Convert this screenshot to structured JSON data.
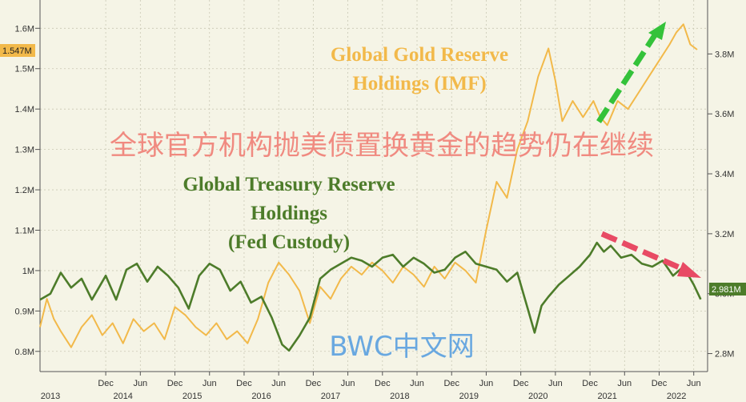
{
  "chart_data": {
    "type": "line",
    "title": "全球官方机构抛美债置换黄金的趋势仍在继续",
    "watermark": "BWC中文网",
    "left_axis": {
      "ticks": [
        "0.8M",
        "0.9M",
        "1M",
        "1.1M",
        "1.2M",
        "1.3M",
        "1.4M",
        "1.5M",
        "1.6M"
      ],
      "tick_values": [
        0.8,
        0.9,
        1.0,
        1.1,
        1.2,
        1.3,
        1.4,
        1.5,
        1.6
      ],
      "ylim": [
        0.75,
        1.67
      ],
      "current_label": "1.547M"
    },
    "right_axis": {
      "ticks": [
        "2.8M",
        "3.0M",
        "3.2M",
        "3.4M",
        "3.6M",
        "3.8M"
      ],
      "tick_values": [
        2.8,
        3.0,
        3.2,
        3.4,
        3.6,
        3.8
      ],
      "ylim": [
        2.74,
        3.98
      ],
      "current_label": "2.981M"
    },
    "x_axis": {
      "xlim": [
        2013.0,
        2022.65
      ],
      "month_ticks": [
        {
          "label": "Dec",
          "x": 2013.95
        },
        {
          "label": "Jun",
          "x": 2014.45
        },
        {
          "label": "Dec",
          "x": 2014.95
        },
        {
          "label": "Jun",
          "x": 2015.45
        },
        {
          "label": "Dec",
          "x": 2015.95
        },
        {
          "label": "Jun",
          "x": 2016.45
        },
        {
          "label": "Dec",
          "x": 2016.95
        },
        {
          "label": "Jun",
          "x": 2017.45
        },
        {
          "label": "Dec",
          "x": 2017.95
        },
        {
          "label": "Jun",
          "x": 2018.45
        },
        {
          "label": "Dec",
          "x": 2018.95
        },
        {
          "label": "Jun",
          "x": 2019.45
        },
        {
          "label": "Dec",
          "x": 2019.95
        },
        {
          "label": "Jun",
          "x": 2020.45
        },
        {
          "label": "Dec",
          "x": 2020.95
        },
        {
          "label": "Jun",
          "x": 2021.45
        },
        {
          "label": "Dec",
          "x": 2021.95
        },
        {
          "label": "Jun",
          "x": 2022.45
        }
      ],
      "year_labels": [
        {
          "label": "2013",
          "x": 2013.15
        },
        {
          "label": "2014",
          "x": 2014.2
        },
        {
          "label": "2015",
          "x": 2015.2
        },
        {
          "label": "2016",
          "x": 2016.2
        },
        {
          "label": "2017",
          "x": 2017.2
        },
        {
          "label": "2018",
          "x": 2018.2
        },
        {
          "label": "2019",
          "x": 2019.2
        },
        {
          "label": "2020",
          "x": 2020.2
        },
        {
          "label": "2021",
          "x": 2021.2
        },
        {
          "label": "2022",
          "x": 2022.2
        }
      ]
    },
    "series": [
      {
        "name": "Global Gold Reserve Holdings (IMF)",
        "axis": "left",
        "color": "#f2b94a",
        "x": [
          2013.0,
          2013.1,
          2013.2,
          2013.3,
          2013.45,
          2013.6,
          2013.75,
          2013.9,
          2014.05,
          2014.2,
          2014.35,
          2014.5,
          2014.65,
          2014.8,
          2014.95,
          2015.1,
          2015.25,
          2015.4,
          2015.55,
          2015.7,
          2015.85,
          2016.0,
          2016.15,
          2016.3,
          2016.45,
          2016.6,
          2016.75,
          2016.9,
          2017.05,
          2017.2,
          2017.35,
          2017.5,
          2017.65,
          2017.8,
          2017.95,
          2018.1,
          2018.25,
          2018.4,
          2018.55,
          2018.7,
          2018.85,
          2019.0,
          2019.15,
          2019.3,
          2019.45,
          2019.6,
          2019.75,
          2019.9,
          2020.05,
          2020.2,
          2020.35,
          2020.45,
          2020.55,
          2020.7,
          2020.85,
          2021.0,
          2021.1,
          2021.2,
          2021.35,
          2021.5,
          2021.65,
          2021.8,
          2021.95,
          2022.1,
          2022.2,
          2022.3,
          2022.4,
          2022.5
        ],
        "values": [
          0.86,
          0.93,
          0.88,
          0.85,
          0.81,
          0.86,
          0.89,
          0.84,
          0.87,
          0.82,
          0.88,
          0.85,
          0.87,
          0.83,
          0.91,
          0.89,
          0.86,
          0.84,
          0.87,
          0.83,
          0.85,
          0.82,
          0.88,
          0.97,
          1.02,
          0.99,
          0.95,
          0.87,
          0.96,
          0.93,
          0.98,
          1.01,
          0.99,
          1.02,
          1.0,
          0.97,
          1.01,
          0.99,
          0.96,
          1.01,
          0.98,
          1.02,
          1.0,
          0.97,
          1.1,
          1.22,
          1.18,
          1.3,
          1.37,
          1.48,
          1.55,
          1.47,
          1.37,
          1.42,
          1.38,
          1.42,
          1.38,
          1.36,
          1.42,
          1.4,
          1.44,
          1.48,
          1.52,
          1.56,
          1.59,
          1.61,
          1.56,
          1.547
        ]
      },
      {
        "name": "Global Treasury Reserve Holdings (Fed Custody)",
        "axis": "right",
        "color": "#4d7c2a",
        "x": [
          2013.0,
          2013.15,
          2013.3,
          2013.45,
          2013.6,
          2013.75,
          2013.85,
          2013.95,
          2014.1,
          2014.25,
          2014.4,
          2014.55,
          2014.7,
          2014.85,
          2015.0,
          2015.15,
          2015.3,
          2015.45,
          2015.6,
          2015.75,
          2015.9,
          2016.05,
          2016.2,
          2016.35,
          2016.5,
          2016.6,
          2016.75,
          2016.9,
          2017.05,
          2017.2,
          2017.35,
          2017.5,
          2017.65,
          2017.8,
          2017.95,
          2018.1,
          2018.25,
          2018.4,
          2018.55,
          2018.7,
          2018.85,
          2019.0,
          2019.15,
          2019.3,
          2019.45,
          2019.6,
          2019.75,
          2019.9,
          2020.05,
          2020.15,
          2020.25,
          2020.35,
          2020.5,
          2020.65,
          2020.8,
          2020.95,
          2021.05,
          2021.15,
          2021.25,
          2021.4,
          2021.55,
          2021.7,
          2021.85,
          2022.0,
          2022.15,
          2022.3,
          2022.45,
          2022.55
        ],
        "values": [
          2.98,
          3.0,
          3.07,
          3.02,
          3.05,
          2.98,
          3.02,
          3.06,
          2.98,
          3.08,
          3.1,
          3.04,
          3.09,
          3.06,
          3.02,
          2.95,
          3.06,
          3.1,
          3.08,
          3.01,
          3.04,
          2.97,
          2.99,
          2.92,
          2.83,
          2.81,
          2.86,
          2.92,
          3.05,
          3.08,
          3.1,
          3.12,
          3.11,
          3.09,
          3.12,
          3.13,
          3.09,
          3.12,
          3.1,
          3.07,
          3.08,
          3.12,
          3.14,
          3.1,
          3.09,
          3.08,
          3.04,
          3.07,
          2.95,
          2.87,
          2.96,
          2.99,
          3.03,
          3.06,
          3.09,
          3.13,
          3.17,
          3.14,
          3.16,
          3.12,
          3.13,
          3.1,
          3.09,
          3.11,
          3.06,
          3.09,
          3.03,
          2.981
        ]
      }
    ],
    "annotations": {
      "gold_line1": "Global Gold Reserve",
      "gold_line2": "Holdings (IMF)",
      "treasury_line1": "Global Treasury Reserve",
      "treasury_line2": "Holdings",
      "treasury_line3": "(Fed Custody)"
    },
    "grid": true,
    "colors": {
      "background": "#f5f4e6",
      "gold": "#f2b94a",
      "treasury": "#4d7c2a",
      "up_arrow": "#34c23a",
      "down_arrow": "#e84a64",
      "title_red": "#f08a80",
      "watermark": "#69a8e0"
    }
  }
}
